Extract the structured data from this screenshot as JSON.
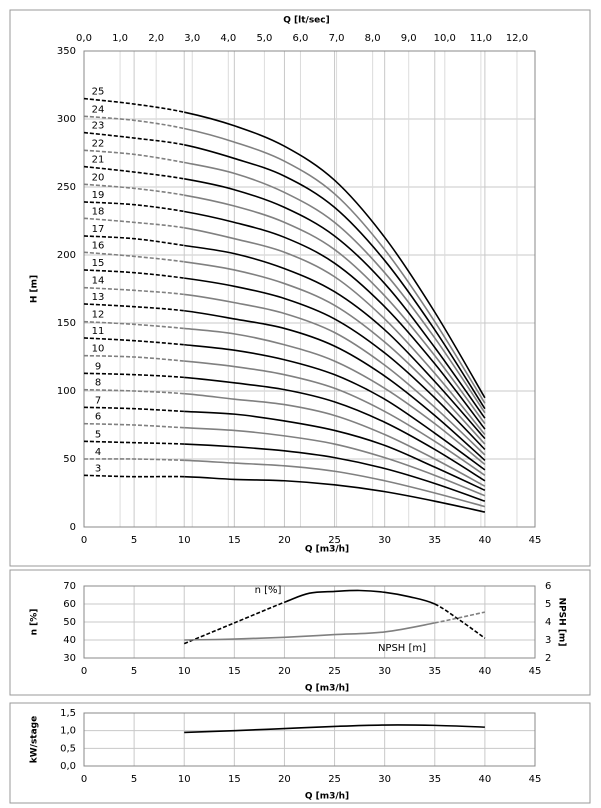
{
  "chart_data": [
    {
      "type": "line",
      "xlabel": "Q [m3/h]",
      "ylabel": "H [m]",
      "x2label": "Q [lt/sec]",
      "xlim": [
        0,
        45
      ],
      "xticks": [
        0,
        5,
        10,
        15,
        20,
        25,
        30,
        35,
        40,
        45
      ],
      "ylim": [
        0,
        350
      ],
      "yticks": [
        0,
        50,
        100,
        150,
        200,
        250,
        300,
        350
      ],
      "x2lim": [
        0,
        12.5
      ],
      "x2ticks": [
        {
          "value": 0,
          "label": "0,0"
        },
        {
          "value": 1,
          "label": "1,0"
        },
        {
          "value": 2,
          "label": "2,0"
        },
        {
          "value": 3,
          "label": "3,0"
        },
        {
          "value": 4,
          "label": "4,0"
        },
        {
          "value": 5,
          "label": "5,0"
        },
        {
          "value": 6,
          "label": "6,0"
        },
        {
          "value": 7,
          "label": "7,0"
        },
        {
          "value": 8,
          "label": "8,0"
        },
        {
          "value": 9,
          "label": "9,0"
        },
        {
          "value": 10,
          "label": "10,0"
        },
        {
          "value": 11,
          "label": "11,0"
        },
        {
          "value": 12,
          "label": "12,0"
        }
      ],
      "grid": true,
      "dashed_xlim": [
        0,
        10
      ],
      "x": [
        0,
        5,
        10,
        15,
        20,
        25,
        30,
        35,
        40
      ],
      "series": [
        {
          "name": "3",
          "color": "#000000",
          "values": [
            38,
            37,
            37,
            35,
            34,
            31,
            26,
            19,
            11
          ]
        },
        {
          "name": "4",
          "color": "#808080",
          "values": [
            50,
            50,
            49,
            47,
            45,
            41,
            34,
            25,
            15
          ]
        },
        {
          "name": "5",
          "color": "#000000",
          "values": [
            63,
            62,
            61,
            59,
            56,
            51,
            43,
            32,
            19
          ]
        },
        {
          "name": "6",
          "color": "#808080",
          "values": [
            76,
            75,
            73,
            71,
            67,
            61,
            51,
            38,
            23
          ]
        },
        {
          "name": "7",
          "color": "#000000",
          "values": [
            88,
            87,
            85,
            83,
            78,
            71,
            60,
            44,
            27
          ]
        },
        {
          "name": "8",
          "color": "#808080",
          "values": [
            101,
            100,
            98,
            94,
            90,
            82,
            68,
            50,
            30
          ]
        },
        {
          "name": "9",
          "color": "#000000",
          "values": [
            113,
            112,
            110,
            106,
            101,
            92,
            77,
            57,
            34
          ]
        },
        {
          "name": "10",
          "color": "#808080",
          "values": [
            126,
            125,
            122,
            118,
            112,
            102,
            85,
            63,
            38
          ]
        },
        {
          "name": "11",
          "color": "#000000",
          "values": [
            139,
            137,
            134,
            130,
            123,
            112,
            94,
            69,
            42
          ]
        },
        {
          "name": "12",
          "color": "#808080",
          "values": [
            151,
            149,
            146,
            142,
            134,
            122,
            102,
            76,
            46
          ]
        },
        {
          "name": "13",
          "color": "#000000",
          "values": [
            164,
            162,
            159,
            153,
            146,
            133,
            111,
            82,
            49
          ]
        },
        {
          "name": "14",
          "color": "#808080",
          "values": [
            176,
            174,
            171,
            165,
            157,
            143,
            119,
            88,
            53
          ]
        },
        {
          "name": "15",
          "color": "#000000",
          "values": [
            189,
            187,
            183,
            177,
            168,
            153,
            128,
            95,
            57
          ]
        },
        {
          "name": "16",
          "color": "#808080",
          "values": [
            202,
            199,
            195,
            189,
            179,
            163,
            136,
            101,
            61
          ]
        },
        {
          "name": "17",
          "color": "#000000",
          "values": [
            214,
            212,
            207,
            201,
            190,
            173,
            145,
            107,
            65
          ]
        },
        {
          "name": "18",
          "color": "#808080",
          "values": [
            227,
            224,
            220,
            212,
            202,
            184,
            153,
            113,
            68
          ]
        },
        {
          "name": "19",
          "color": "#000000",
          "values": [
            239,
            237,
            232,
            224,
            213,
            194,
            162,
            120,
            72
          ]
        },
        {
          "name": "20",
          "color": "#808080",
          "values": [
            252,
            249,
            244,
            236,
            224,
            204,
            170,
            126,
            76
          ]
        },
        {
          "name": "21",
          "color": "#000000",
          "values": [
            265,
            261,
            256,
            248,
            235,
            214,
            179,
            132,
            80
          ]
        },
        {
          "name": "22",
          "color": "#808080",
          "values": [
            277,
            274,
            268,
            260,
            246,
            224,
            187,
            139,
            84
          ]
        },
        {
          "name": "23",
          "color": "#000000",
          "values": [
            290,
            286,
            281,
            271,
            258,
            235,
            196,
            145,
            87
          ]
        },
        {
          "name": "24",
          "color": "#808080",
          "values": [
            302,
            299,
            293,
            283,
            269,
            245,
            204,
            151,
            91
          ]
        },
        {
          "name": "25",
          "color": "#000000",
          "values": [
            315,
            311,
            305,
            295,
            280,
            255,
            213,
            158,
            95
          ]
        }
      ]
    },
    {
      "type": "line",
      "xlabel": "Q [m3/h]",
      "ylabel": "n [%]",
      "y2label": "NPSH [m]",
      "xlim": [
        0,
        45
      ],
      "xticks": [
        0,
        5,
        10,
        15,
        20,
        25,
        30,
        35,
        40,
        45
      ],
      "ylim": [
        30,
        70
      ],
      "yticks": [
        30,
        40,
        50,
        60,
        70
      ],
      "y2lim": [
        2,
        6
      ],
      "y2ticks": [
        2,
        3,
        4,
        5,
        6
      ],
      "grid": true,
      "series": [
        {
          "name": "n [%]",
          "color": "#000000",
          "solid_xlim": [
            20,
            35
          ],
          "x": [
            10,
            15,
            20,
            22.5,
            25,
            27.5,
            30,
            32.5,
            35,
            37.5,
            40
          ],
          "values": [
            38,
            49.5,
            61,
            66,
            67,
            67.5,
            66.5,
            64,
            60,
            51,
            41
          ]
        },
        {
          "name": "NPSH [m]",
          "color": "#808080",
          "axis": "y2",
          "solid_xlim": [
            10,
            35
          ],
          "x": [
            10,
            15,
            20,
            25,
            30,
            35,
            40
          ],
          "values": [
            3.0,
            3.05,
            3.15,
            3.3,
            3.45,
            3.95,
            4.55
          ]
        }
      ]
    },
    {
      "type": "line",
      "xlabel": "Q [m3/h]",
      "ylabel": "kW/stage",
      "xlim": [
        0,
        45
      ],
      "xticks": [
        0,
        5,
        10,
        15,
        20,
        25,
        30,
        35,
        40,
        45
      ],
      "ylim": [
        0,
        1.5
      ],
      "yticks": [
        {
          "value": 0,
          "label": "0,0"
        },
        {
          "value": 0.5,
          "label": "0,5"
        },
        {
          "value": 1,
          "label": "1,0"
        },
        {
          "value": 1.5,
          "label": "1,5"
        }
      ],
      "grid": true,
      "series": [
        {
          "color": "#000000",
          "x": [
            10,
            15,
            20,
            25,
            30,
            35,
            40
          ],
          "values": [
            0.95,
            1.0,
            1.06,
            1.12,
            1.16,
            1.15,
            1.1
          ]
        }
      ]
    }
  ]
}
